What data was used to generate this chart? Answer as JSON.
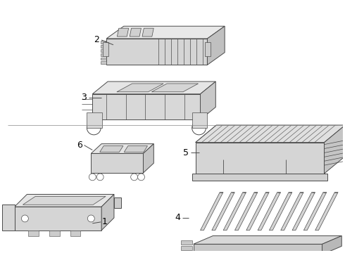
{
  "background_color": "#ffffff",
  "line_color": "#4a4a4a",
  "fig_width": 4.9,
  "fig_height": 3.6,
  "dpi": 100
}
